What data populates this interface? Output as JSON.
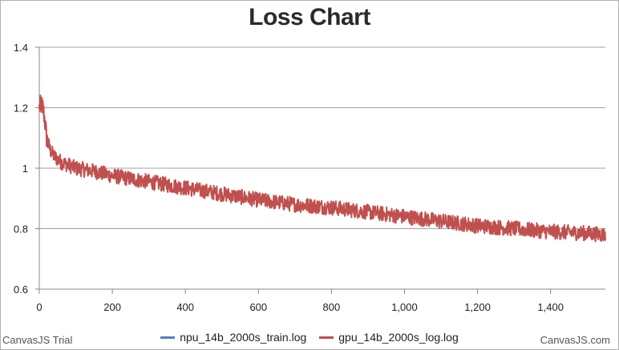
{
  "chart_data": {
    "type": "line",
    "title": "Loss Chart",
    "xlabel": "",
    "ylabel": "",
    "xlim": [
      0,
      1550
    ],
    "ylim": [
      0.6,
      1.4
    ],
    "x_ticks": [
      0,
      200,
      400,
      600,
      800,
      1000,
      1200,
      1400
    ],
    "x_tick_labels": [
      "0",
      "200",
      "400",
      "600",
      "800",
      "1,000",
      "1,200",
      "1,400"
    ],
    "y_ticks": [
      0.6,
      0.8,
      1.0,
      1.2,
      1.4
    ],
    "y_tick_labels": [
      "0.6",
      "0.8",
      "1",
      "1.2",
      "1.4"
    ],
    "grid": true,
    "legend_position": "bottom",
    "series": [
      {
        "name": "npu_14b_2000s_train.log",
        "color": "#4f81bc",
        "x": [],
        "y": []
      },
      {
        "name": "gpu_14b_2000s_log.log",
        "color": "#c0504e",
        "trend": {
          "x": [
            0,
            5,
            10,
            15,
            20,
            30,
            40,
            60,
            80,
            100,
            150,
            200,
            300,
            400,
            500,
            600,
            700,
            800,
            900,
            1000,
            1100,
            1200,
            1300,
            1400,
            1500,
            1550
          ],
          "y": [
            1.2,
            1.21,
            1.2,
            1.16,
            1.1,
            1.06,
            1.04,
            1.02,
            1.01,
            1.0,
            0.99,
            0.975,
            0.955,
            0.935,
            0.915,
            0.895,
            0.88,
            0.87,
            0.855,
            0.84,
            0.825,
            0.81,
            0.8,
            0.79,
            0.785,
            0.78
          ]
        },
        "noise_amplitude": 0.025
      }
    ]
  },
  "watermark_left": "CanvasJS Trial",
  "watermark_right": "CanvasJS.com"
}
